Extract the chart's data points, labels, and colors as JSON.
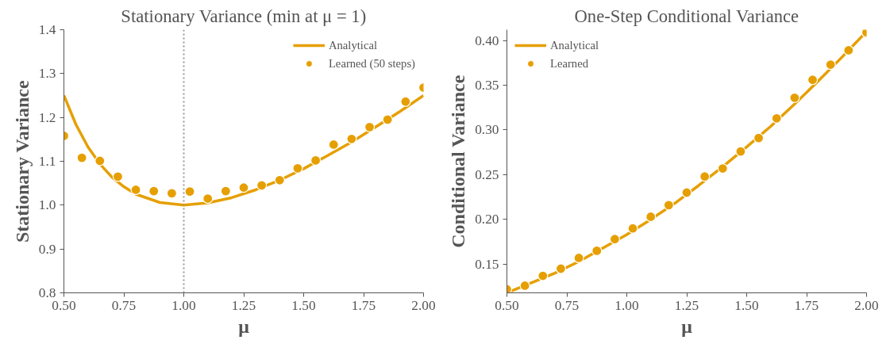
{
  "chart_data": [
    {
      "type": "line",
      "title": "Stationary Variance (min at μ = 1)",
      "xlabel": "μ",
      "ylabel": "Stationary Variance",
      "xlim": [
        0.5,
        2.0
      ],
      "ylim": [
        0.8,
        1.4
      ],
      "xticks": [
        {
          "value": 0.5,
          "label": "0.50"
        },
        0.75,
        {
          "value": 1.0,
          "label": "1.00"
        },
        1.25,
        {
          "value": 1.5,
          "label": "1.50"
        },
        1.75,
        {
          "value": 2.0,
          "label": "2.00"
        }
      ],
      "yticks": [
        0.8,
        0.9,
        {
          "value": 1.0,
          "label": "1.0"
        },
        1.1,
        1.2,
        1.3,
        1.4
      ],
      "grid": false,
      "legend": "top right",
      "ref_lines": [
        {
          "axis": "x",
          "value": 1.0,
          "color": "#999999",
          "line_style": "dotted"
        }
      ],
      "series": [
        {
          "name": "Analytical",
          "color": "#e69f00",
          "x": [
            0.5,
            0.55,
            0.6,
            0.65,
            0.7,
            0.75,
            0.8,
            0.9,
            1.0,
            1.1,
            1.2,
            1.3,
            1.4,
            1.5,
            1.6,
            1.7,
            1.8,
            1.9,
            2.0
          ],
          "values": [
            1.25,
            1.184,
            1.133,
            1.094,
            1.064,
            1.042,
            1.025,
            1.006,
            1.0,
            1.005,
            1.017,
            1.035,
            1.057,
            1.083,
            1.113,
            1.144,
            1.178,
            1.213,
            1.25
          ]
        },
        {
          "name": "Learned (50 steps)",
          "type": "scatter",
          "marker": "circle",
          "color": "#e69f00",
          "x": [
            0.5,
            0.575,
            0.65,
            0.725,
            0.8,
            0.875,
            0.95,
            1.025,
            1.1,
            1.175,
            1.25,
            1.325,
            1.4,
            1.475,
            1.55,
            1.625,
            1.7,
            1.775,
            1.85,
            1.925,
            2.0
          ],
          "values": [
            1.158,
            1.108,
            1.101,
            1.065,
            1.035,
            1.032,
            1.027,
            1.031,
            1.015,
            1.032,
            1.04,
            1.045,
            1.057,
            1.084,
            1.102,
            1.138,
            1.151,
            1.178,
            1.195,
            1.236,
            1.268
          ]
        }
      ]
    },
    {
      "type": "line",
      "title": "One-Step Conditional Variance",
      "xlabel": "μ",
      "ylabel": "Conditional Variance",
      "xlim": [
        0.5,
        2.0
      ],
      "ylim": [
        0.118,
        0.412
      ],
      "xticks": [
        {
          "value": 0.5,
          "label": "0.50"
        },
        0.75,
        {
          "value": 1.0,
          "label": "1.00"
        },
        1.25,
        {
          "value": 1.5,
          "label": "1.50"
        },
        1.75,
        {
          "value": 2.0,
          "label": "2.00"
        }
      ],
      "yticks": [
        0.15,
        {
          "value": 0.2,
          "label": "0.20"
        },
        0.25,
        {
          "value": 0.3,
          "label": "0.30"
        },
        0.35,
        {
          "value": 0.4,
          "label": "0.40"
        }
      ],
      "grid": false,
      "legend": "top left",
      "series": [
        {
          "name": "Analytical",
          "color": "#e69f00",
          "x": [
            0.5,
            0.6,
            0.7,
            0.8,
            0.9,
            1.0,
            1.1,
            1.2,
            1.3,
            1.4,
            1.5,
            1.6,
            1.7,
            1.8,
            1.9,
            2.0
          ],
          "values": [
            0.118,
            0.129,
            0.14,
            0.153,
            0.168,
            0.183,
            0.2,
            0.218,
            0.238,
            0.259,
            0.281,
            0.304,
            0.329,
            0.355,
            0.382,
            0.41
          ]
        },
        {
          "name": "Learned",
          "type": "scatter",
          "marker": "circle",
          "color": "#e69f00",
          "x": [
            0.5,
            0.575,
            0.65,
            0.725,
            0.8,
            0.875,
            0.95,
            1.025,
            1.1,
            1.175,
            1.25,
            1.325,
            1.4,
            1.475,
            1.55,
            1.625,
            1.7,
            1.775,
            1.85,
            1.925,
            2.0
          ],
          "values": [
            0.122,
            0.126,
            0.137,
            0.145,
            0.157,
            0.165,
            0.178,
            0.19,
            0.203,
            0.216,
            0.23,
            0.248,
            0.257,
            0.276,
            0.291,
            0.313,
            0.336,
            0.356,
            0.373,
            0.389,
            0.409
          ]
        }
      ]
    }
  ]
}
